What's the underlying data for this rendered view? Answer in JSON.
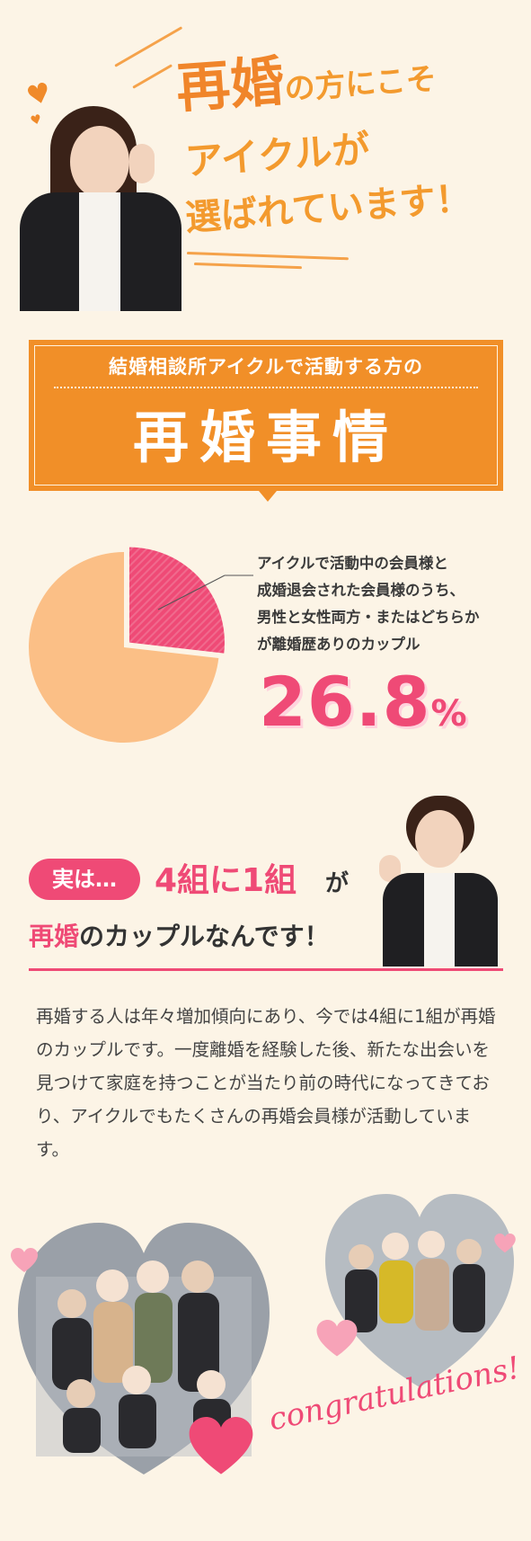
{
  "hero": {
    "line1_big": "再婚",
    "line1_rest": "の方にこそ",
    "line2": "アイクルが",
    "line3": "選ばれています！"
  },
  "banner": {
    "subtitle": "結婚相談所アイクルで活動する方の",
    "title": "再婚事情"
  },
  "stats": {
    "description_lines": [
      "アイクルで活動中の会員様と",
      "成婚退会された会員様のうち、",
      "男性と女性両方・またはどちらか",
      "が離婚歴ありのカップル"
    ],
    "percent_number": "26.8",
    "percent_unit": "%",
    "pie_fraction": 0.268,
    "colors": {
      "highlight": "#ef4a76",
      "rest": "#fbbf86"
    }
  },
  "callout": {
    "badge": "実は…",
    "headline_part1": "4組に1組",
    "headline_part1_suffix": "が",
    "headline_part2_pink": "再婚",
    "headline_part2_rest": "のカップルなんです！"
  },
  "body_text": "再婚する人は年々増加傾向にあり、今では4組に1組が再婚のカップルです。一度離婚を経験した後、新たな出会いを見つけて家庭を持つことが当たり前の時代になってきており、アイクルでもたくさんの再婚会員様が活動しています。",
  "photos": {
    "caption": "congratulations!"
  }
}
